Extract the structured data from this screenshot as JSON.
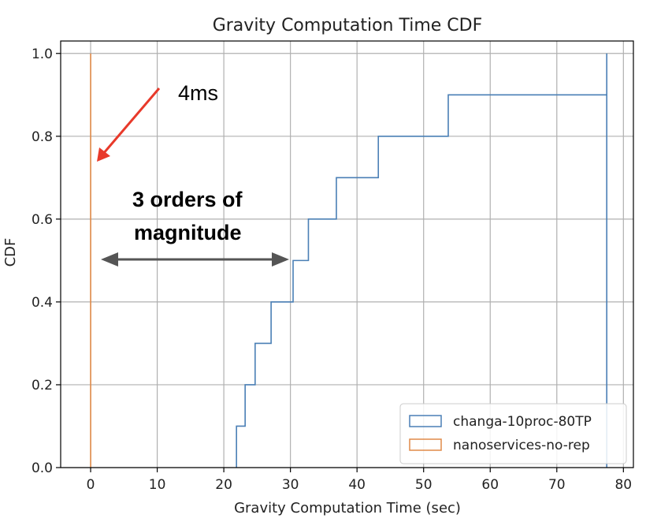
{
  "chart_data": {
    "type": "line",
    "subtype": "step-cdf",
    "title": "Gravity Computation Time CDF",
    "xlabel": "Gravity Computation Time (sec)",
    "ylabel": "CDF",
    "xlim": [
      -4.5,
      81.5
    ],
    "ylim": [
      0,
      1.03
    ],
    "xticks": [
      0,
      10,
      20,
      30,
      40,
      50,
      60,
      70,
      80
    ],
    "yticks": [
      "0.0",
      "0.2",
      "0.4",
      "0.6",
      "0.8",
      "1.0"
    ],
    "grid": true,
    "legend_position": "lower-right",
    "series": [
      {
        "name": "changa-10proc-80TP",
        "color": "#4a7fb5",
        "x": [
          21.9,
          23.2,
          24.7,
          27.1,
          30.4,
          32.7,
          36.9,
          43.2,
          53.7,
          77.5
        ],
        "y": [
          0.1,
          0.2,
          0.3,
          0.4,
          0.5,
          0.6,
          0.7,
          0.8,
          0.9,
          1.0
        ]
      },
      {
        "name": "nanoservices-no-rep",
        "color": "#e08a48",
        "x": [
          0.004,
          0.004,
          0.004,
          0.004,
          0.004,
          0.004,
          0.004,
          0.004,
          0.004,
          0.004
        ],
        "y": [
          0.1,
          0.2,
          0.3,
          0.4,
          0.5,
          0.6,
          0.7,
          0.8,
          0.9,
          1.0
        ]
      }
    ],
    "annotations": {
      "small_time": "4ms",
      "gap_line1": "3 orders of",
      "gap_line2": "magnitude",
      "arrow_color": "#e8392a",
      "gap_arrow_color": "#555555"
    }
  }
}
